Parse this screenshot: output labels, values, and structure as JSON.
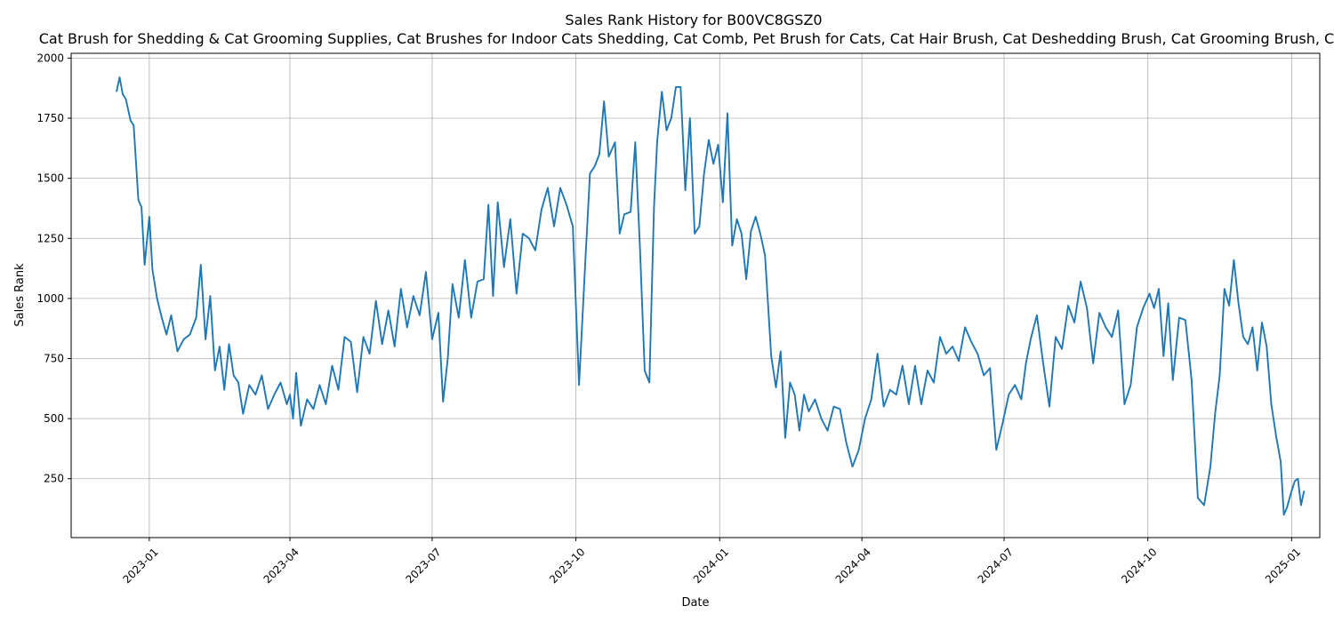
{
  "chart_data": {
    "type": "line",
    "title": "Sales Rank History for B00VC8GSZ0",
    "subtitle": "Cat Brush for Shedding & Cat Grooming Supplies, Cat Brushes for Indoor Cats Shedding, Cat Comb, Pet Brush for Cats, Cat Hair Brush, Cat Deshedding Brush, Cat Grooming Brush, Cat",
    "xlabel": "Date",
    "ylabel": "Sales Rank",
    "x_type": "date",
    "xlim": [
      "2022-11-12",
      "2025-01-19"
    ],
    "ylim": [
      5,
      2020
    ],
    "grid": true,
    "legend": false,
    "line_color": "#1f77b4",
    "x_ticks": [
      "2023-01",
      "2023-04",
      "2023-07",
      "2023-10",
      "2024-01",
      "2024-04",
      "2024-07",
      "2024-10",
      "2025-01"
    ],
    "y_ticks": [
      250,
      500,
      750,
      1000,
      1250,
      1500,
      1750,
      2000
    ],
    "series": [
      {
        "x": [
          "2022-12-11",
          "2022-12-13",
          "2022-12-15",
          "2022-12-17",
          "2022-12-20",
          "2022-12-22",
          "2022-12-25",
          "2022-12-27",
          "2022-12-29",
          "2023-01-01",
          "2023-01-03",
          "2023-01-06",
          "2023-01-09",
          "2023-01-12",
          "2023-01-15",
          "2023-01-19",
          "2023-01-23",
          "2023-01-27",
          "2023-01-31",
          "2023-02-03",
          "2023-02-06",
          "2023-02-09",
          "2023-02-12",
          "2023-02-15",
          "2023-02-18",
          "2023-02-21",
          "2023-02-24",
          "2023-02-27",
          "2023-03-02",
          "2023-03-06",
          "2023-03-10",
          "2023-03-14",
          "2023-03-18",
          "2023-03-22",
          "2023-03-26",
          "2023-03-30",
          "2023-04-01",
          "2023-04-03",
          "2023-04-05",
          "2023-04-08",
          "2023-04-12",
          "2023-04-16",
          "2023-04-20",
          "2023-04-24",
          "2023-04-28",
          "2023-05-02",
          "2023-05-06",
          "2023-05-10",
          "2023-05-14",
          "2023-05-18",
          "2023-05-22",
          "2023-05-26",
          "2023-05-30",
          "2023-06-03",
          "2023-06-07",
          "2023-06-11",
          "2023-06-15",
          "2023-06-19",
          "2023-06-23",
          "2023-06-27",
          "2023-07-01",
          "2023-07-05",
          "2023-07-08",
          "2023-07-11",
          "2023-07-14",
          "2023-07-18",
          "2023-07-22",
          "2023-07-26",
          "2023-07-30",
          "2023-08-03",
          "2023-08-06",
          "2023-08-09",
          "2023-08-12",
          "2023-08-16",
          "2023-08-20",
          "2023-08-24",
          "2023-08-28",
          "2023-09-01",
          "2023-09-05",
          "2023-09-09",
          "2023-09-13",
          "2023-09-17",
          "2023-09-21",
          "2023-09-25",
          "2023-09-29",
          "2023-10-03",
          "2023-10-07",
          "2023-10-10",
          "2023-10-13",
          "2023-10-16",
          "2023-10-19",
          "2023-10-22",
          "2023-10-26",
          "2023-10-29",
          "2023-11-01",
          "2023-11-05",
          "2023-11-08",
          "2023-11-11",
          "2023-11-14",
          "2023-11-17",
          "2023-11-20",
          "2023-11-22",
          "2023-11-25",
          "2023-11-28",
          "2023-12-01",
          "2023-12-04",
          "2023-12-07",
          "2023-12-10",
          "2023-12-13",
          "2023-12-16",
          "2023-12-19",
          "2023-12-22",
          "2023-12-25",
          "2023-12-28",
          "2023-12-31",
          "2024-01-03",
          "2024-01-06",
          "2024-01-09",
          "2024-01-12",
          "2024-01-15",
          "2024-01-18",
          "2024-01-21",
          "2024-01-24",
          "2024-01-27",
          "2024-01-30",
          "2024-02-03",
          "2024-02-06",
          "2024-02-09",
          "2024-02-12",
          "2024-02-15",
          "2024-02-18",
          "2024-02-21",
          "2024-02-24",
          "2024-02-27",
          "2024-03-02",
          "2024-03-06",
          "2024-03-10",
          "2024-03-14",
          "2024-03-18",
          "2024-03-22",
          "2024-03-26",
          "2024-03-30",
          "2024-04-03",
          "2024-04-07",
          "2024-04-11",
          "2024-04-15",
          "2024-04-19",
          "2024-04-23",
          "2024-04-27",
          "2024-05-01",
          "2024-05-05",
          "2024-05-09",
          "2024-05-13",
          "2024-05-17",
          "2024-05-21",
          "2024-05-25",
          "2024-05-29",
          "2024-06-02",
          "2024-06-06",
          "2024-06-10",
          "2024-06-14",
          "2024-06-18",
          "2024-06-22",
          "2024-06-26",
          "2024-06-30",
          "2024-07-04",
          "2024-07-08",
          "2024-07-12",
          "2024-07-15",
          "2024-07-18",
          "2024-07-22",
          "2024-07-26",
          "2024-07-30",
          "2024-08-03",
          "2024-08-07",
          "2024-08-11",
          "2024-08-15",
          "2024-08-19",
          "2024-08-23",
          "2024-08-27",
          "2024-08-31",
          "2024-09-04",
          "2024-09-08",
          "2024-09-12",
          "2024-09-16",
          "2024-09-20",
          "2024-09-24",
          "2024-09-28",
          "2024-10-02",
          "2024-10-05",
          "2024-10-08",
          "2024-10-11",
          "2024-10-14",
          "2024-10-17",
          "2024-10-21",
          "2024-10-25",
          "2024-10-29",
          "2024-11-02",
          "2024-11-06",
          "2024-11-10",
          "2024-11-13",
          "2024-11-16",
          "2024-11-19",
          "2024-11-22",
          "2024-11-25",
          "2024-11-28",
          "2024-12-01",
          "2024-12-04",
          "2024-12-07",
          "2024-12-10",
          "2024-12-13",
          "2024-12-16",
          "2024-12-19",
          "2024-12-22",
          "2024-12-25",
          "2024-12-27",
          "2024-12-29",
          "2025-01-01",
          "2025-01-03",
          "2025-01-05",
          "2025-01-07",
          "2025-01-09"
        ],
        "y": [
          1860,
          1920,
          1850,
          1830,
          1740,
          1720,
          1410,
          1380,
          1140,
          1340,
          1120,
          1000,
          920,
          850,
          930,
          780,
          830,
          850,
          920,
          1140,
          830,
          1010,
          700,
          800,
          620,
          810,
          680,
          650,
          520,
          640,
          600,
          680,
          540,
          600,
          650,
          560,
          600,
          500,
          690,
          470,
          580,
          540,
          640,
          560,
          720,
          620,
          840,
          820,
          610,
          840,
          770,
          990,
          810,
          950,
          800,
          1040,
          880,
          1010,
          930,
          1110,
          830,
          940,
          570,
          750,
          1060,
          920,
          1160,
          920,
          1070,
          1080,
          1390,
          1010,
          1400,
          1130,
          1330,
          1020,
          1270,
          1250,
          1200,
          1370,
          1460,
          1300,
          1460,
          1390,
          1300,
          640,
          1150,
          1520,
          1550,
          1600,
          1820,
          1590,
          1650,
          1270,
          1350,
          1360,
          1650,
          1210,
          700,
          650,
          1380,
          1650,
          1860,
          1700,
          1750,
          1880,
          1880,
          1450,
          1750,
          1270,
          1300,
          1520,
          1660,
          1560,
          1640,
          1400,
          1770,
          1220,
          1330,
          1270,
          1080,
          1280,
          1340,
          1270,
          1180,
          760,
          630,
          780,
          420,
          650,
          600,
          450,
          600,
          530,
          580,
          500,
          450,
          550,
          540,
          400,
          300,
          370,
          500,
          580,
          770,
          550,
          620,
          600,
          720,
          560,
          720,
          560,
          700,
          650,
          840,
          770,
          800,
          740,
          880,
          820,
          770,
          680,
          710,
          370,
          480,
          600,
          640,
          580,
          730,
          830,
          930,
          730,
          550,
          840,
          790,
          970,
          900,
          1070,
          960,
          730,
          940,
          880,
          840,
          950,
          560,
          640,
          880,
          960,
          1020,
          960,
          1040,
          760,
          980,
          660,
          920,
          910,
          660,
          170,
          140,
          300,
          520,
          680,
          1040,
          970,
          1160,
          980,
          840,
          810,
          880,
          700,
          900,
          800,
          560,
          430,
          320,
          100,
          130,
          200,
          240,
          250,
          140,
          200
        ]
      }
    ]
  }
}
